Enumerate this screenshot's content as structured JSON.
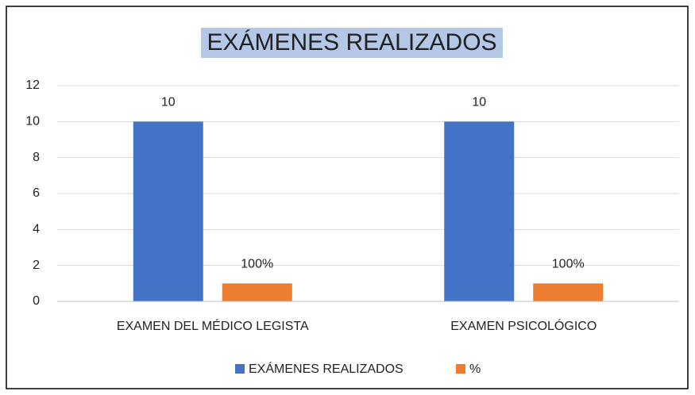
{
  "chart_data": {
    "type": "bar",
    "title": "EXÁMENES REALIZADOS",
    "categories": [
      "EXAMEN DEL MÉDICO LEGISTA",
      "EXAMEN PSICOLÓGICO"
    ],
    "series": [
      {
        "name": "EXÁMENES REALIZADOS",
        "color": "#4472c4",
        "values": [
          10,
          10
        ]
      },
      {
        "name": "%",
        "color": "#ed7d31",
        "values": [
          1,
          1
        ],
        "value_labels": [
          "100%",
          "100%"
        ]
      }
    ],
    "ylim": [
      0,
      12
    ],
    "yticks": [
      0,
      2,
      4,
      6,
      8,
      10,
      12
    ],
    "grid": true,
    "legend": "bottom"
  }
}
